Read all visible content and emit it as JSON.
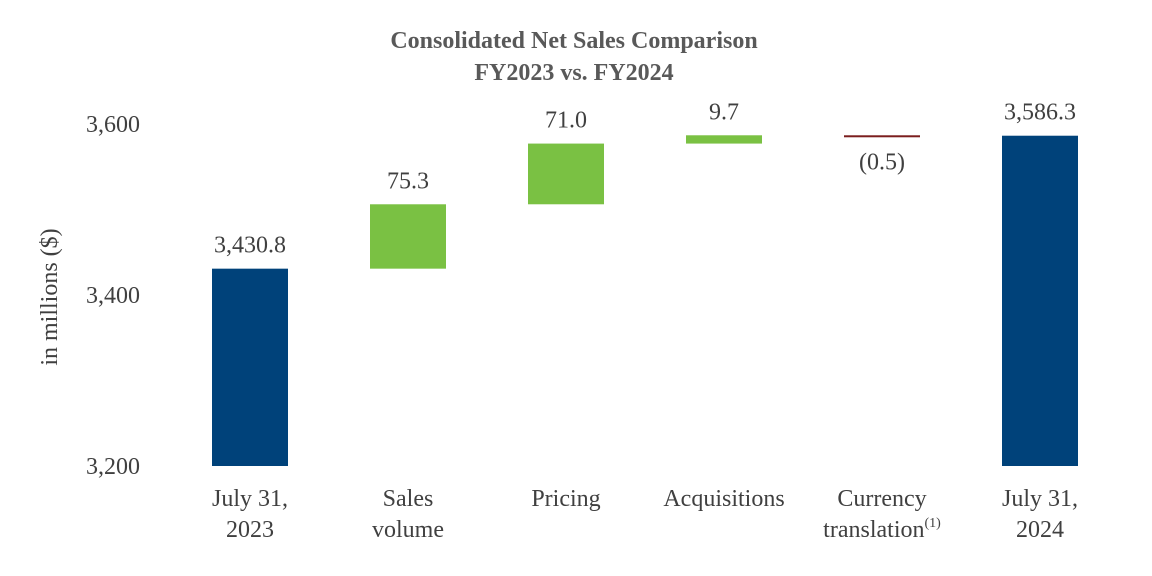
{
  "chart_data": {
    "type": "waterfall",
    "title": "Consolidated Net Sales Comparison",
    "subtitle": "FY2023 vs. FY2024",
    "ylabel": "in millions ($)",
    "xlabel": "",
    "ylim": [
      3200,
      3650
    ],
    "yticks": [
      3200,
      3400,
      3600
    ],
    "ytick_labels": [
      "3,200",
      "3,400",
      "3,600"
    ],
    "grid": false,
    "legend": "none",
    "colors": {
      "total": "#00427A",
      "increase": "#7AC143",
      "decrease": "#7B1E1E"
    },
    "steps": [
      {
        "category_lines": [
          "July 31,",
          "2023"
        ],
        "category_sup": "",
        "kind": "total",
        "value": 3430.8,
        "label": "3,430.8"
      },
      {
        "category_lines": [
          "Sales",
          "volume"
        ],
        "category_sup": "",
        "kind": "increase",
        "value": 75.3,
        "label": "75.3"
      },
      {
        "category_lines": [
          "Pricing"
        ],
        "category_sup": "",
        "kind": "increase",
        "value": 71.0,
        "label": "71.0"
      },
      {
        "category_lines": [
          "Acquisitions"
        ],
        "category_sup": "",
        "kind": "increase",
        "value": 9.7,
        "label": "9.7"
      },
      {
        "category_lines": [
          "Currency",
          "translation"
        ],
        "category_sup": "(1)",
        "kind": "decrease",
        "value": -0.5,
        "label": "(0.5)"
      },
      {
        "category_lines": [
          "July 31,",
          "2024"
        ],
        "category_sup": "",
        "kind": "total",
        "value": 3586.3,
        "label": "3,586.3"
      }
    ]
  }
}
